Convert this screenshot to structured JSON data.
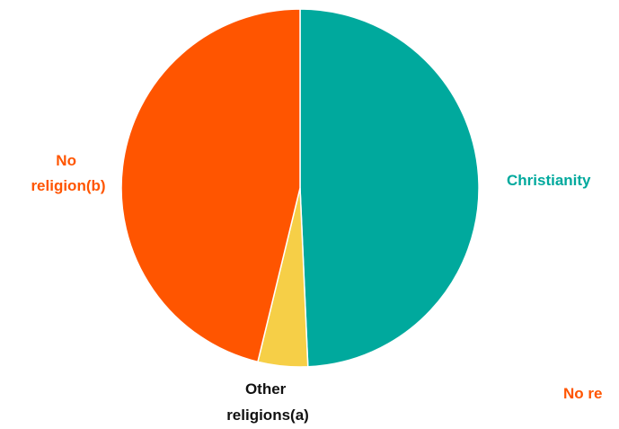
{
  "chart_data": {
    "type": "pie",
    "slices": [
      {
        "label": "Christianity",
        "value": 49.3,
        "color": "#00A99D"
      },
      {
        "label": "Other religions(a)",
        "value": 4.5,
        "color": "#F6CF47"
      },
      {
        "label": "No religion(b)",
        "value": 46.2,
        "color": "#FF5500"
      }
    ],
    "cut_off_label": "No re",
    "cut_off_label_color": "#FF5500"
  }
}
